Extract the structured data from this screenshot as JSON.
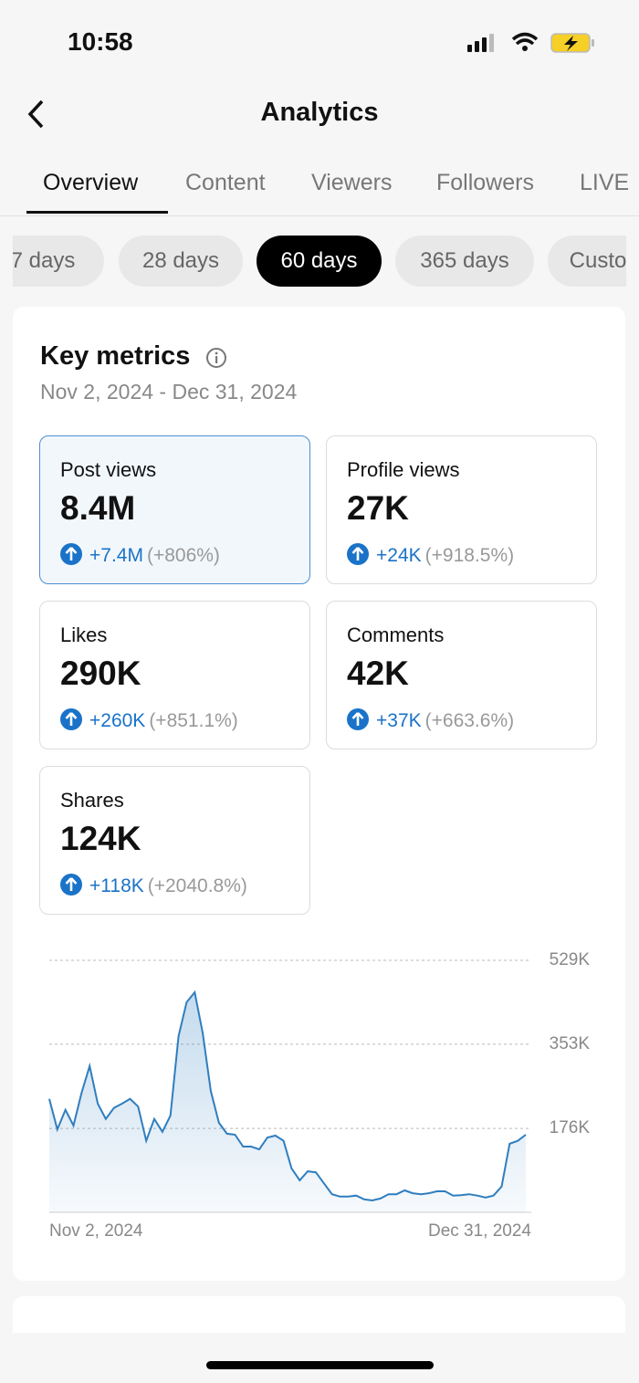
{
  "status_bar": {
    "time": "10:58"
  },
  "header": {
    "title": "Analytics"
  },
  "tabs": [
    "Overview",
    "Content",
    "Viewers",
    "Followers",
    "LIVE"
  ],
  "active_tab": 0,
  "periods": [
    "7 days",
    "28 days",
    "60 days",
    "365 days",
    "Custom"
  ],
  "active_period": 2,
  "key_metrics": {
    "title": "Key metrics",
    "date_range": "Nov 2, 2024 - Dec 31, 2024",
    "selected": 0,
    "metrics": [
      {
        "label": "Post views",
        "value": "8.4M",
        "change": "+7.4M",
        "percent": "(+806%)"
      },
      {
        "label": "Profile views",
        "value": "27K",
        "change": "+24K",
        "percent": "(+918.5%)"
      },
      {
        "label": "Likes",
        "value": "290K",
        "change": "+260K",
        "percent": "(+851.1%)"
      },
      {
        "label": "Comments",
        "value": "42K",
        "change": "+37K",
        "percent": "(+663.6%)"
      },
      {
        "label": "Shares",
        "value": "124K",
        "change": "+118K",
        "percent": "(+2040.8%)"
      }
    ]
  },
  "chart_data": {
    "type": "line",
    "categories": [
      "Nov 2, 2024",
      null,
      null,
      null,
      null,
      null,
      null,
      null,
      null,
      null,
      null,
      null,
      null,
      null,
      null,
      null,
      null,
      null,
      null,
      null,
      null,
      null,
      null,
      null,
      null,
      null,
      null,
      null,
      null,
      null,
      null,
      null,
      null,
      null,
      null,
      null,
      null,
      null,
      null,
      null,
      null,
      null,
      null,
      null,
      null,
      null,
      null,
      null,
      null,
      null,
      null,
      null,
      null,
      null,
      null,
      null,
      null,
      null,
      null,
      "Dec 31, 2024"
    ],
    "values": [
      238000,
      174000,
      215000,
      182000,
      251000,
      307000,
      228000,
      196000,
      219000,
      228000,
      238000,
      222000,
      150000,
      196000,
      169000,
      203000,
      370000,
      441000,
      462000,
      376000,
      255000,
      188000,
      165000,
      163000,
      138000,
      138000,
      132000,
      157000,
      161000,
      150000,
      92000,
      67000,
      86000,
      84000,
      61000,
      38000,
      33000,
      33000,
      35000,
      27000,
      25000,
      29000,
      38000,
      38000,
      46000,
      40000,
      38000,
      40000,
      44000,
      44000,
      35000,
      36000,
      38000,
      35000,
      31000,
      35000,
      54000,
      144000,
      150000,
      163000
    ],
    "color": "#2f7ebf",
    "ylim": [
      0,
      529000
    ],
    "yticks": [
      {
        "value": 529000,
        "label": "529K"
      },
      {
        "value": 353000,
        "label": "353K"
      },
      {
        "value": 176000,
        "label": "176K"
      }
    ],
    "grid": true
  }
}
